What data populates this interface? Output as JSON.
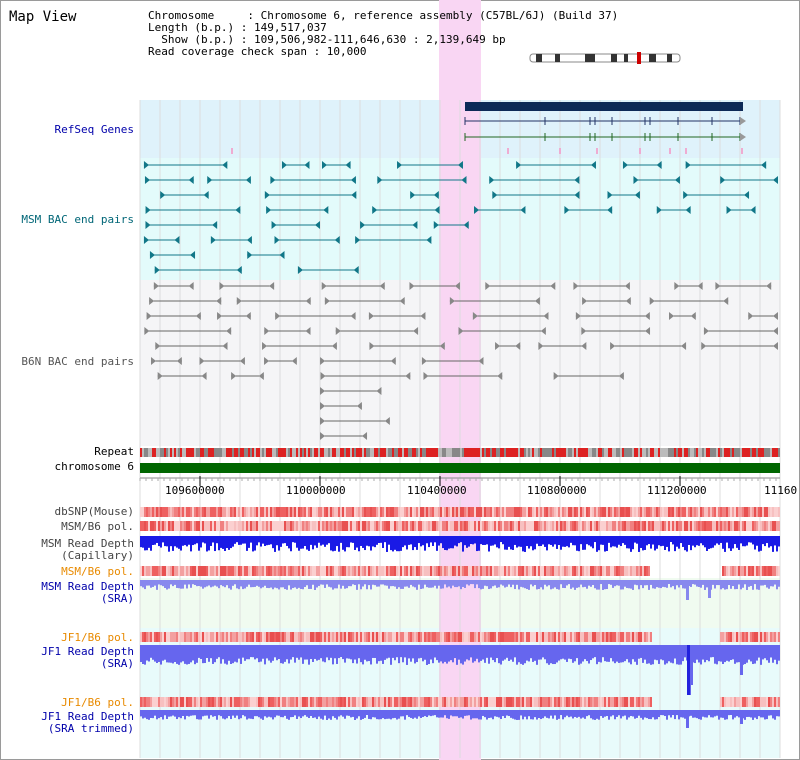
{
  "title": "Map View",
  "info": {
    "line1": "Chromosome     : Chromosome 6, reference assembly (C57BL/6J) (Build 37)",
    "line2": "Length (b.p.) : 149,517,037",
    "line3": "  Show (b.p.) : 109,506,982-111,646,630 : 2,139,649 bp",
    "line4": "Read coverage check span : 10,000"
  },
  "tracks": {
    "refseq": "RefSeq Genes",
    "msm_bac": "MSM BAC end pairs",
    "b6n_bac": "B6N BAC end pairs",
    "repeat": "Repeat",
    "chromosome": "chromosome 6",
    "dbsnp": "dbSNP(Mouse)",
    "msm_pol": "MSM/B6 pol.",
    "msm_depth_cap_1": "MSM Read Depth",
    "msm_depth_cap_2": "(Capillary)",
    "msm_pol2": "MSM/B6 pol.",
    "msm_depth_sra_1": "MSM Read Depth",
    "msm_depth_sra_2": "(SRA)",
    "jf1_pol": "JF1/B6 pol.",
    "jf1_depth_sra_1": "JF1 Read Depth",
    "jf1_depth_sra_2": "(SRA)",
    "jf1_pol2": "JF1/B6 pol.",
    "jf1_depth_trim_1": "JF1 Read Depth",
    "jf1_depth_trim_2": "(SRA trimmed)"
  },
  "axis": {
    "ticks": [
      "109600000",
      "110000000",
      "110400000",
      "110800000",
      "111200000",
      "11160"
    ]
  },
  "colors": {
    "highlight": "#f9d6f3",
    "refseq_bg": "#dff2fb",
    "msm_bg": "#e3fbfb",
    "b6n_bg": "#f5f5f7",
    "refseq_label": "#0000aa",
    "msm_label": "#006677",
    "b6n_label": "#555555",
    "chromosome_green": "#006600",
    "depth_blue": "#2222dd",
    "orange_label": "#e88a00"
  }
}
